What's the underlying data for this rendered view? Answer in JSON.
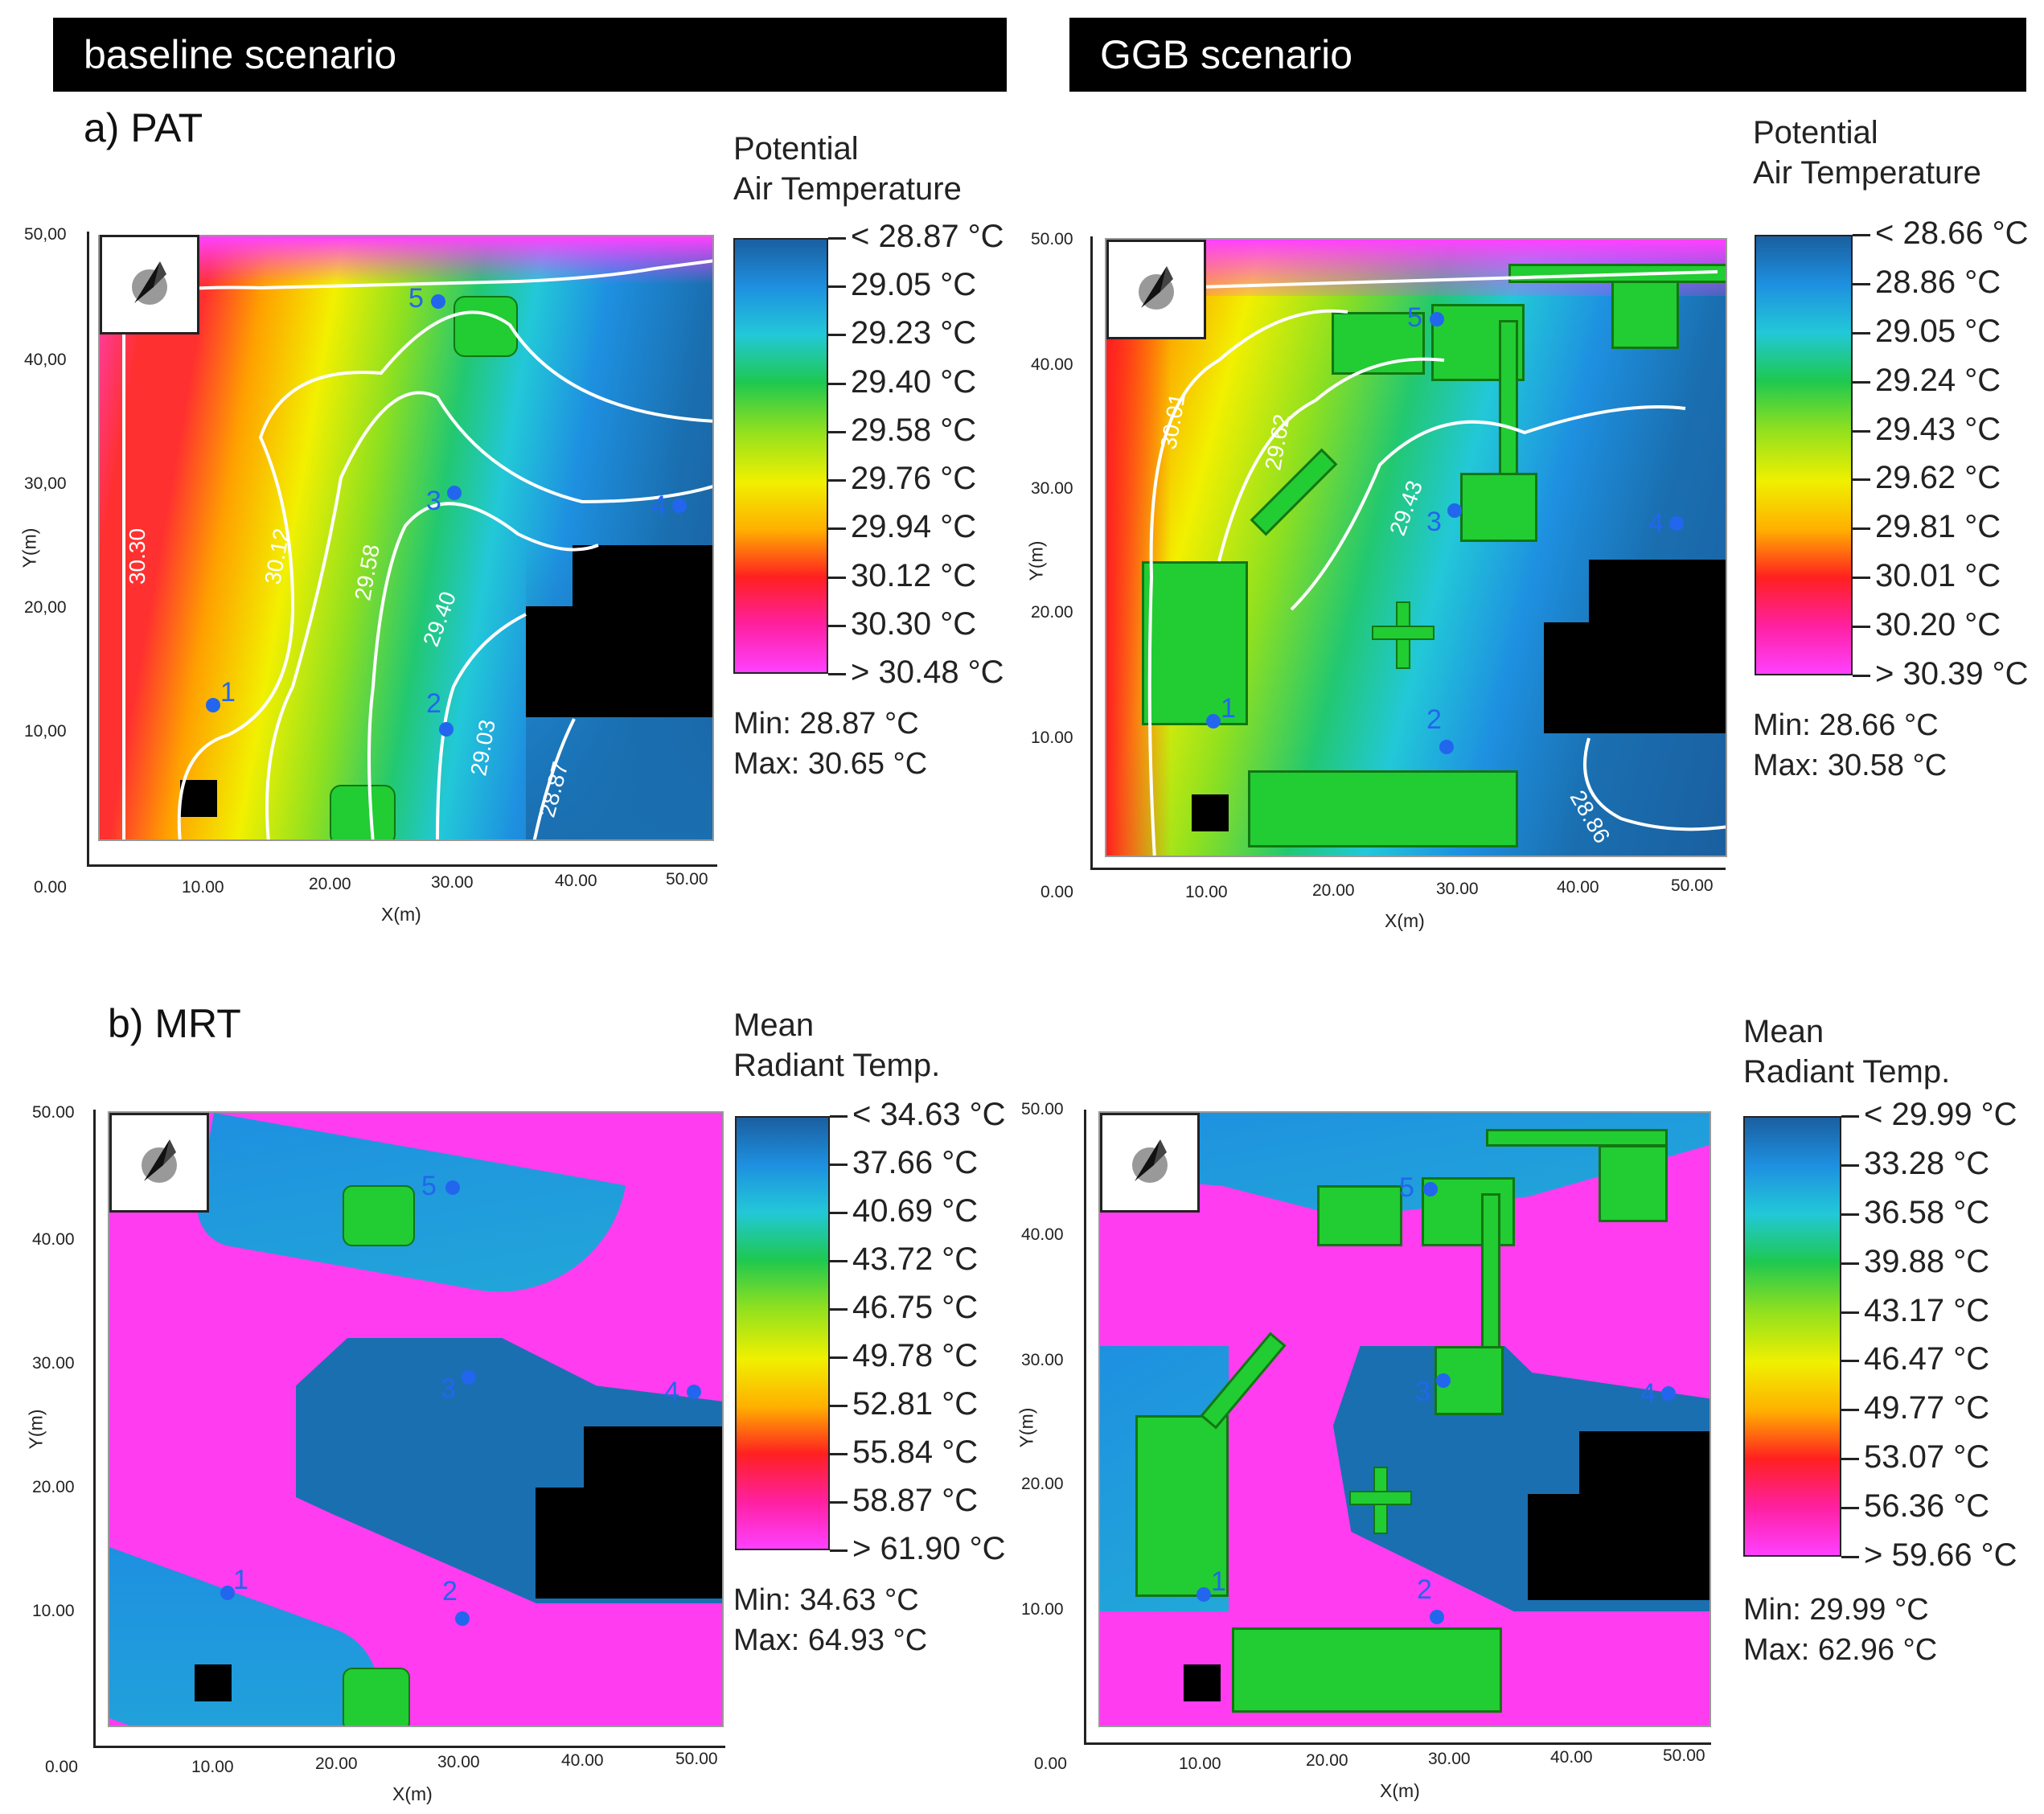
{
  "headers": {
    "baseline": "baseline scenario",
    "ggb": "GGB scenario"
  },
  "panels": {
    "pat": "a) PAT",
    "mrt": "b) MRT"
  },
  "axes": {
    "xlabel": "X(m)",
    "ylabel": "Y(m)",
    "x_ticks": [
      "0.00",
      "10.00",
      "20.00",
      "30.00",
      "40.00",
      "50.00"
    ],
    "y_ticks_a": [
      "50,00",
      "40,00",
      "30,00",
      "20,00",
      "10,00"
    ],
    "y_ticks": [
      "50.00",
      "40.00",
      "30.00",
      "20.00",
      "10.00"
    ]
  },
  "legends": {
    "pat_baseline": {
      "title1": "Potential",
      "title2": "Air Temperature",
      "ticks": [
        "< 28.87 °C",
        "29.05  °C",
        "29.23  °C",
        "29.40  °C",
        "29.58  °C",
        "29.76  °C",
        "29.94  °C",
        "30.12  °C",
        "30.30  °C",
        "> 30.48 °C"
      ],
      "min": "Min: 28.87 °C",
      "max": "Max: 30.65 °C"
    },
    "pat_ggb": {
      "title1": "Potential",
      "title2": "Air Temperature",
      "ticks": [
        "< 28.66 °C",
        "28.86  °C",
        "29.05  °C",
        "29.24  °C",
        "29.43  °C",
        "29.62  °C",
        "29.81  °C",
        "30.01  °C",
        "30.20  °C",
        "> 30.39 °C"
      ],
      "min": "Min: 28.66 °C",
      "max": "Max: 30.58 °C"
    },
    "mrt_baseline": {
      "title1": "Mean",
      "title2": "Radiant Temp.",
      "ticks": [
        "< 34.63 °C",
        "37.66  °C",
        "40.69  °C",
        "43.72  °C",
        "46.75  °C",
        "49.78  °C",
        "52.81  °C",
        "55.84  °C",
        "58.87  °C",
        "> 61.90 °C"
      ],
      "min": "Min: 34.63 °C",
      "max": "Max: 64.93 °C"
    },
    "mrt_ggb": {
      "title1": "Mean",
      "title2": "Radiant Temp.",
      "ticks": [
        "< 29.99 °C",
        "33.28  °C",
        "36.58  °C",
        "39.88  °C",
        "43.17  °C",
        "46.47  °C",
        "49.77  °C",
        "53.07  °C",
        "56.36  °C",
        "> 59.66 °C"
      ],
      "min": "Min: 29.99 °C",
      "max": "Max: 62.96 °C"
    }
  },
  "contours": {
    "pat_baseline": [
      "30.30",
      "30.12",
      "29.58",
      "29.40",
      "29.03",
      "28.87"
    ],
    "pat_ggb": [
      "30.01",
      "29.62",
      "29.43",
      "28.86"
    ]
  },
  "receptors": [
    "1",
    "2",
    "3",
    "4",
    "5"
  ],
  "colors": {
    "scale": [
      "#1a5fa0",
      "#1e90e0",
      "#22c8d8",
      "#1ec850",
      "#8ee020",
      "#f0f000",
      "#ffb000",
      "#ff2020",
      "#ff20a0",
      "#ff40ff"
    ],
    "vegetation": "#22cc33",
    "building": "#000000",
    "receptor": "#2266ee"
  },
  "chart_data": [
    {
      "type": "heatmap",
      "title": "a) PAT",
      "subtitle": "baseline scenario",
      "xlabel": "X(m)",
      "ylabel": "Y(m)",
      "xlim": [
        0,
        50
      ],
      "ylim": [
        0,
        50
      ],
      "legend_title": "Potential Air Temperature",
      "scale_ticks": [
        28.87,
        29.05,
        29.23,
        29.4,
        29.58,
        29.76,
        29.94,
        30.12,
        30.3,
        30.48
      ],
      "min": 28.87,
      "max": 30.65,
      "contour_labels": [
        30.3,
        30.12,
        29.58,
        29.4,
        29.03,
        28.87
      ],
      "receptors": [
        {
          "id": "1",
          "x": 9.5,
          "y": 12.5
        },
        {
          "id": "2",
          "x": 29,
          "y": 10.5
        },
        {
          "id": "3",
          "x": 30,
          "y": 30
        },
        {
          "id": "4",
          "x": 48.5,
          "y": 28.5
        },
        {
          "id": "5",
          "x": 28.5,
          "y": 45
        }
      ]
    },
    {
      "type": "heatmap",
      "title": "a) PAT",
      "subtitle": "GGB scenario",
      "xlabel": "X(m)",
      "ylabel": "Y(m)",
      "xlim": [
        0,
        50
      ],
      "ylim": [
        0,
        50
      ],
      "legend_title": "Potential Air Temperature",
      "scale_ticks": [
        28.66,
        28.86,
        29.05,
        29.24,
        29.43,
        29.62,
        29.81,
        30.01,
        30.2,
        30.39
      ],
      "min": 28.66,
      "max": 30.58,
      "contour_labels": [
        30.01,
        29.62,
        29.43,
        28.86
      ],
      "receptors": [
        {
          "id": "1",
          "x": 9.5,
          "y": 11.5
        },
        {
          "id": "2",
          "x": 28.5,
          "y": 9.5
        },
        {
          "id": "3",
          "x": 28.5,
          "y": 28.5
        },
        {
          "id": "4",
          "x": 47.5,
          "y": 27.5
        },
        {
          "id": "5",
          "x": 27.5,
          "y": 44
        }
      ]
    },
    {
      "type": "heatmap",
      "title": "b) MRT",
      "subtitle": "baseline scenario",
      "xlabel": "X(m)",
      "ylabel": "Y(m)",
      "xlim": [
        0,
        50
      ],
      "ylim": [
        0,
        50
      ],
      "legend_title": "Mean Radiant Temp.",
      "scale_ticks": [
        34.63,
        37.66,
        40.69,
        43.72,
        46.75,
        49.78,
        52.81,
        55.84,
        58.87,
        61.9
      ],
      "min": 34.63,
      "max": 64.93,
      "receptors": [
        {
          "id": "1",
          "x": 10,
          "y": 12
        },
        {
          "id": "2",
          "x": 29,
          "y": 10
        },
        {
          "id": "3",
          "x": 29.5,
          "y": 29
        },
        {
          "id": "4",
          "x": 47.5,
          "y": 28
        },
        {
          "id": "5",
          "x": 28.5,
          "y": 44
        }
      ]
    },
    {
      "type": "heatmap",
      "title": "b) MRT",
      "subtitle": "GGB scenario",
      "xlabel": "X(m)",
      "ylabel": "Y(m)",
      "xlim": [
        0,
        50
      ],
      "ylim": [
        0,
        50
      ],
      "legend_title": "Mean Radiant Temp.",
      "scale_ticks": [
        29.99,
        33.28,
        36.58,
        39.88,
        43.17,
        46.47,
        49.77,
        53.07,
        56.36,
        59.66
      ],
      "min": 29.99,
      "max": 62.96,
      "receptors": [
        {
          "id": "1",
          "x": 8.5,
          "y": 11.5
        },
        {
          "id": "2",
          "x": 27.5,
          "y": 10
        },
        {
          "id": "3",
          "x": 28,
          "y": 28.5
        },
        {
          "id": "4",
          "x": 47,
          "y": 27.5
        },
        {
          "id": "5",
          "x": 27.5,
          "y": 44
        }
      ]
    }
  ]
}
